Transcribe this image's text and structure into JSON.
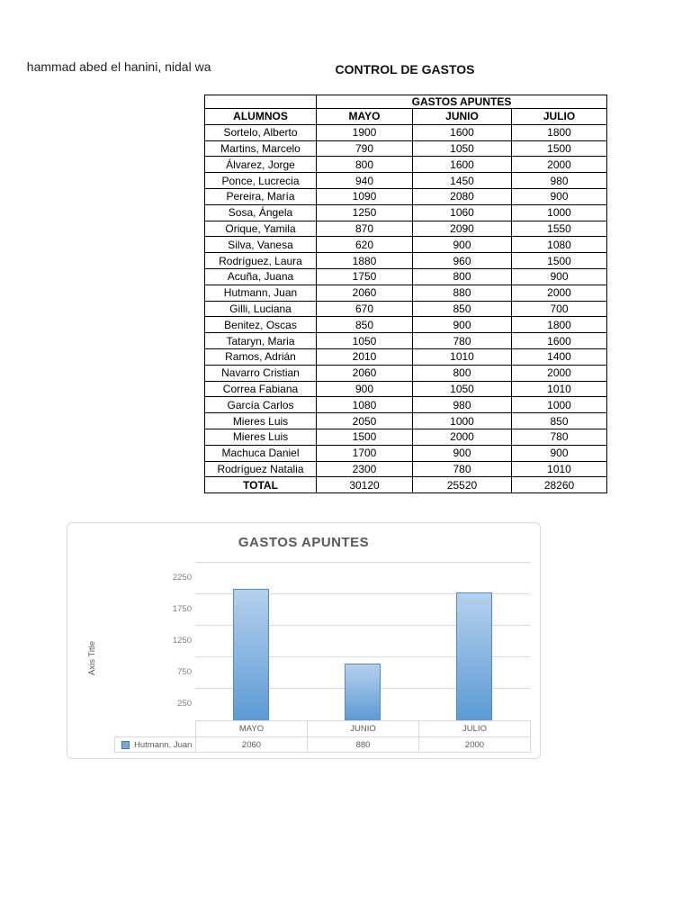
{
  "page": {
    "header_partial_text": "ohammad abed el hanini, nidal wa",
    "title": "CONTROL DE GASTOS"
  },
  "expense_table": {
    "merged_header": "GASTOS APUNTES",
    "column_headers": [
      "ALUMNOS",
      "MAYO",
      "JUNIO",
      "JULIO"
    ],
    "rows": [
      [
        "Sortelo, Alberto",
        "1900",
        "1600",
        "1800"
      ],
      [
        "Martins, Marcelo",
        "790",
        "1050",
        "1500"
      ],
      [
        "Álvarez, Jorge",
        "800",
        "1600",
        "2000"
      ],
      [
        "Ponce, Lucrecia",
        "940",
        "1450",
        "980"
      ],
      [
        "Pereira, María",
        "1090",
        "2080",
        "900"
      ],
      [
        "Sosa, Ángela",
        "1250",
        "1060",
        "1000"
      ],
      [
        "Orique, Yamila",
        "870",
        "2090",
        "1550"
      ],
      [
        "Silva, Vanesa",
        "620",
        "900",
        "1080"
      ],
      [
        "Rodríguez, Laura",
        "1880",
        "960",
        "1500"
      ],
      [
        "Acuña, Juana",
        "1750",
        "800",
        "900"
      ],
      [
        "Hutmann, Juan",
        "2060",
        "880",
        "2000"
      ],
      [
        "Gilli, Luciana",
        "670",
        "850",
        "700"
      ],
      [
        "Benitez, Oscas",
        "850",
        "900",
        "1800"
      ],
      [
        "Tataryn, Maria",
        "1050",
        "780",
        "1600"
      ],
      [
        "Ramos, Adrián",
        "2010",
        "1010",
        "1400"
      ],
      [
        "Navarro Cristian",
        "2060",
        "800",
        "2000"
      ],
      [
        "Correa Fabiana",
        "900",
        "1050",
        "1010"
      ],
      [
        "García Carlos",
        "1080",
        "980",
        "1000"
      ],
      [
        "Mieres Luis",
        "2050",
        "1000",
        "850"
      ],
      [
        "Mieres Luis",
        "1500",
        "2000",
        "780"
      ],
      [
        "Machuca Daniel",
        "1700",
        "900",
        "900"
      ],
      [
        "Rodríguez Natalia",
        "2300",
        "780",
        "1010"
      ]
    ],
    "total_row": [
      "TOTAL",
      "30120",
      "25520",
      "28260"
    ]
  },
  "chart_data": {
    "type": "bar",
    "title": "GASTOS APUNTES",
    "categories": [
      "MAYO",
      "JUNIO",
      "JULIO"
    ],
    "series": [
      {
        "name": "Hutmann, Juan",
        "values": [
          2060,
          880,
          2000
        ]
      }
    ],
    "xlabel": "",
    "ylabel": "Axis Title",
    "ylim": [
      0,
      2500
    ],
    "y_tick_labels": [
      "2250",
      "1750",
      "1250",
      "750",
      "250"
    ],
    "gridline_values": [
      2500,
      2000,
      1500,
      1000,
      500
    ],
    "grid": true,
    "legend_position": "bottom-left",
    "data_table_shown": true,
    "colors": {
      "bar_fill_top": "#b4d0ec",
      "bar_fill_bottom": "#5b9bd5",
      "bar_border": "#4f8bc4",
      "gridline": "#d9d9d9",
      "chart_border": "#d9d9d9",
      "title_text": "#595959",
      "tick_text": "#7f7f7f"
    }
  }
}
